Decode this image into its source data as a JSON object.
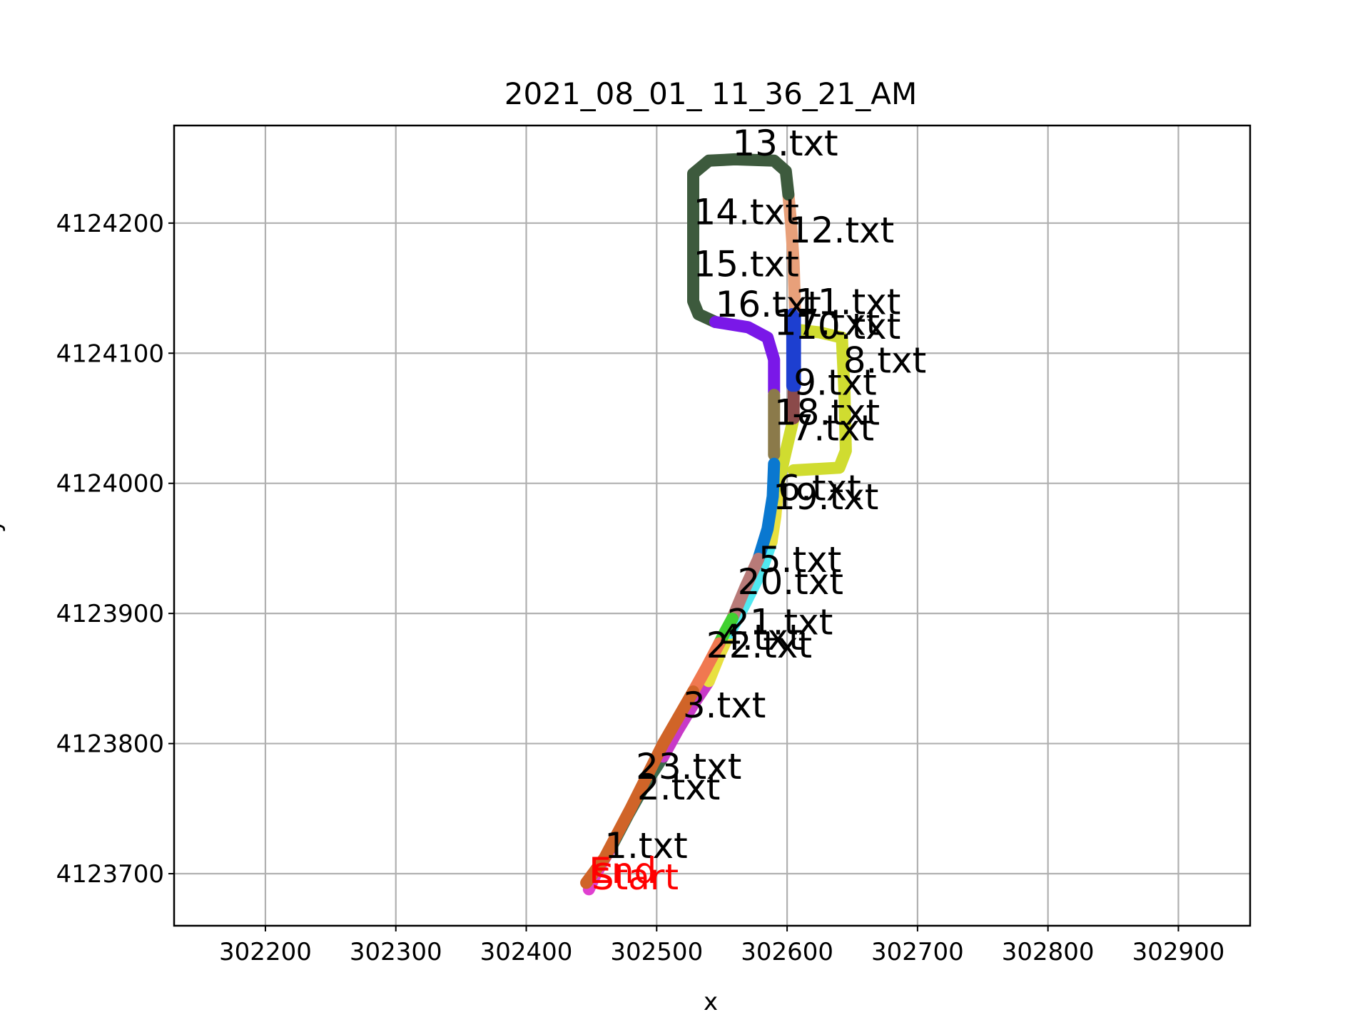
{
  "chart_data": {
    "type": "line",
    "title": "2021_08_01_ 11_36_21_AM",
    "xlabel": "x",
    "ylabel": "y",
    "xlim": [
      302130,
      302955
    ],
    "ylim": [
      4123660,
      4124275
    ],
    "xticks": [
      302200,
      302300,
      302400,
      302500,
      302600,
      302700,
      302800,
      302900
    ],
    "yticks": [
      4123700,
      4123800,
      4123900,
      4124000,
      4124100,
      4124200
    ],
    "grid": true,
    "start_label": {
      "text": "Start",
      "x": 302450,
      "y": 4123688
    },
    "end_label": {
      "text": "End",
      "x": 302448,
      "y": 4123693
    },
    "series": [
      {
        "name": "1.txt",
        "color": "#e040d0",
        "points": [
          [
            302448,
            4123688
          ],
          [
            302452,
            4123697
          ],
          [
            302458,
            4123708
          ],
          [
            302465,
            4123720
          ]
        ]
      },
      {
        "name": "2.txt",
        "color": "#3d6b4f",
        "points": [
          [
            302465,
            4123720
          ],
          [
            302478,
            4123745
          ],
          [
            302492,
            4123770
          ],
          [
            302505,
            4123790
          ]
        ]
      },
      {
        "name": "3.txt",
        "color": "#c83ac8",
        "points": [
          [
            302505,
            4123790
          ],
          [
            302516,
            4123810
          ],
          [
            302528,
            4123830
          ],
          [
            302540,
            4123848
          ]
        ]
      },
      {
        "name": "4.txt",
        "color": "#e8e040",
        "points": [
          [
            302540,
            4123848
          ],
          [
            302548,
            4123868
          ],
          [
            302556,
            4123885
          ]
        ]
      },
      {
        "name": "5.txt",
        "color": "#50e8f0",
        "points": [
          [
            302556,
            4123885
          ],
          [
            302568,
            4123908
          ],
          [
            302580,
            4123932
          ],
          [
            302588,
            4123955
          ]
        ]
      },
      {
        "name": "6.txt",
        "color": "#e8e040",
        "points": [
          [
            302588,
            4123955
          ],
          [
            302591,
            4123975
          ],
          [
            302593,
            4123998
          ]
        ]
      },
      {
        "name": "7.txt",
        "color": "#d0dc30",
        "points": [
          [
            302593,
            4123998
          ],
          [
            302598,
            4124020
          ],
          [
            302605,
            4124050
          ]
        ]
      },
      {
        "name": "8.txt",
        "color": "#d0dc30",
        "points": [
          [
            302605,
            4124010
          ],
          [
            302640,
            4124012
          ],
          [
            302645,
            4124025
          ],
          [
            302644,
            4124070
          ],
          [
            302642,
            4124112
          ]
        ]
      },
      {
        "name": "9.txt",
        "color": "#8b4a4a",
        "points": [
          [
            302605,
            4124050
          ],
          [
            302605,
            4124070
          ],
          [
            302606,
            4124090
          ]
        ]
      },
      {
        "name": "10.txt",
        "color": "#d0dc30",
        "points": [
          [
            302642,
            4124112
          ],
          [
            302625,
            4124116
          ],
          [
            302608,
            4124118
          ]
        ]
      },
      {
        "name": "11.txt",
        "color": "#1d3fd0",
        "points": [
          [
            302606,
            4124075
          ],
          [
            302606,
            4124100
          ],
          [
            302606,
            4124130
          ]
        ]
      },
      {
        "name": "12.txt",
        "color": "#e8a07a",
        "points": [
          [
            302606,
            4124135
          ],
          [
            302605,
            4124170
          ],
          [
            302603,
            4124200
          ],
          [
            302601,
            4124222
          ]
        ]
      },
      {
        "name": "13.txt",
        "color": "#3d5a3d",
        "points": [
          [
            302601,
            4124222
          ],
          [
            302599,
            4124240
          ],
          [
            302590,
            4124248
          ],
          [
            302560,
            4124249
          ],
          [
            302540,
            4124248
          ],
          [
            302528,
            4124238
          ],
          [
            302528,
            4124215
          ]
        ]
      },
      {
        "name": "14.txt",
        "color": "#3d5a3d",
        "points": [
          [
            302528,
            4124215
          ],
          [
            302528,
            4124190
          ],
          [
            302528,
            4124165
          ]
        ]
      },
      {
        "name": "15.txt",
        "color": "#3d5a3d",
        "points": [
          [
            302528,
            4124165
          ],
          [
            302528,
            4124140
          ],
          [
            302532,
            4124130
          ],
          [
            302545,
            4124124
          ]
        ]
      },
      {
        "name": "16.txt",
        "color": "#7a18e8",
        "points": [
          [
            302545,
            4124124
          ],
          [
            302570,
            4124120
          ],
          [
            302585,
            4124112
          ],
          [
            302590,
            4124095
          ],
          [
            302590,
            4124070
          ]
        ]
      },
      {
        "name": "17.txt",
        "color": "#1d3fd0",
        "points": [
          [
            302604,
            4124130
          ],
          [
            302604,
            4124100
          ],
          [
            302604,
            4124075
          ]
        ]
      },
      {
        "name": "18.txt",
        "color": "#8b7a4a",
        "points": [
          [
            302590,
            4124068
          ],
          [
            302590,
            4124045
          ],
          [
            302590,
            4124022
          ]
        ]
      },
      {
        "name": "19.txt",
        "color": "#0a78d0",
        "points": [
          [
            302590,
            4124015
          ],
          [
            302589,
            4123990
          ],
          [
            302585,
            4123965
          ],
          [
            302578,
            4123942
          ]
        ]
      },
      {
        "name": "20.txt",
        "color": "#b87a78",
        "points": [
          [
            302578,
            4123942
          ],
          [
            302568,
            4123920
          ],
          [
            302558,
            4123896
          ]
        ]
      },
      {
        "name": "21.txt",
        "color": "#40d030",
        "points": [
          [
            302558,
            4123896
          ],
          [
            302552,
            4123885
          ],
          [
            302548,
            4123877
          ]
        ]
      },
      {
        "name": "22.txt",
        "color": "#f07850",
        "points": [
          [
            302548,
            4123877
          ],
          [
            302538,
            4123858
          ],
          [
            302528,
            4123840
          ]
        ]
      },
      {
        "name": "23.txt",
        "color": "#d06428",
        "points": [
          [
            302528,
            4123840
          ],
          [
            302505,
            4123800
          ],
          [
            302480,
            4123750
          ],
          [
            302460,
            4123712
          ],
          [
            302446,
            4123693
          ]
        ]
      }
    ],
    "segment_labels": [
      {
        "text": "1.txt",
        "x": 302460,
        "y": 4123712
      },
      {
        "text": "2.txt",
        "x": 302485,
        "y": 4123757
      },
      {
        "text": "3.txt",
        "x": 302520,
        "y": 4123820
      },
      {
        "text": "4.txt",
        "x": 302548,
        "y": 4123872
      },
      {
        "text": "5.txt",
        "x": 302578,
        "y": 4123932
      },
      {
        "text": "6.txt",
        "x": 302593,
        "y": 4123987
      },
      {
        "text": "7.txt",
        "x": 302603,
        "y": 4124033
      },
      {
        "text": "8.txt",
        "x": 302643,
        "y": 4124085
      },
      {
        "text": "9.txt",
        "x": 302605,
        "y": 4124068
      },
      {
        "text": "10.txt",
        "x": 302606,
        "y": 4124111
      },
      {
        "text": "11.txt",
        "x": 302606,
        "y": 4124130
      },
      {
        "text": "12.txt",
        "x": 302601,
        "y": 4124185
      },
      {
        "text": "13.txt",
        "x": 302558,
        "y": 4124252
      },
      {
        "text": "14.txt",
        "x": 302528,
        "y": 4124199
      },
      {
        "text": "15.txt",
        "x": 302528,
        "y": 4124159
      },
      {
        "text": "16.txt",
        "x": 302545,
        "y": 4124128
      },
      {
        "text": "17.txt",
        "x": 302590,
        "y": 4124114
      },
      {
        "text": "18.txt",
        "x": 302590,
        "y": 4124045
      },
      {
        "text": "19.txt",
        "x": 302589,
        "y": 4123980
      },
      {
        "text": "20.txt",
        "x": 302562,
        "y": 4123915
      },
      {
        "text": "21.txt",
        "x": 302554,
        "y": 4123884
      },
      {
        "text": "22.txt",
        "x": 302538,
        "y": 4123866
      },
      {
        "text": "23.txt",
        "x": 302484,
        "y": 4123773
      }
    ]
  }
}
